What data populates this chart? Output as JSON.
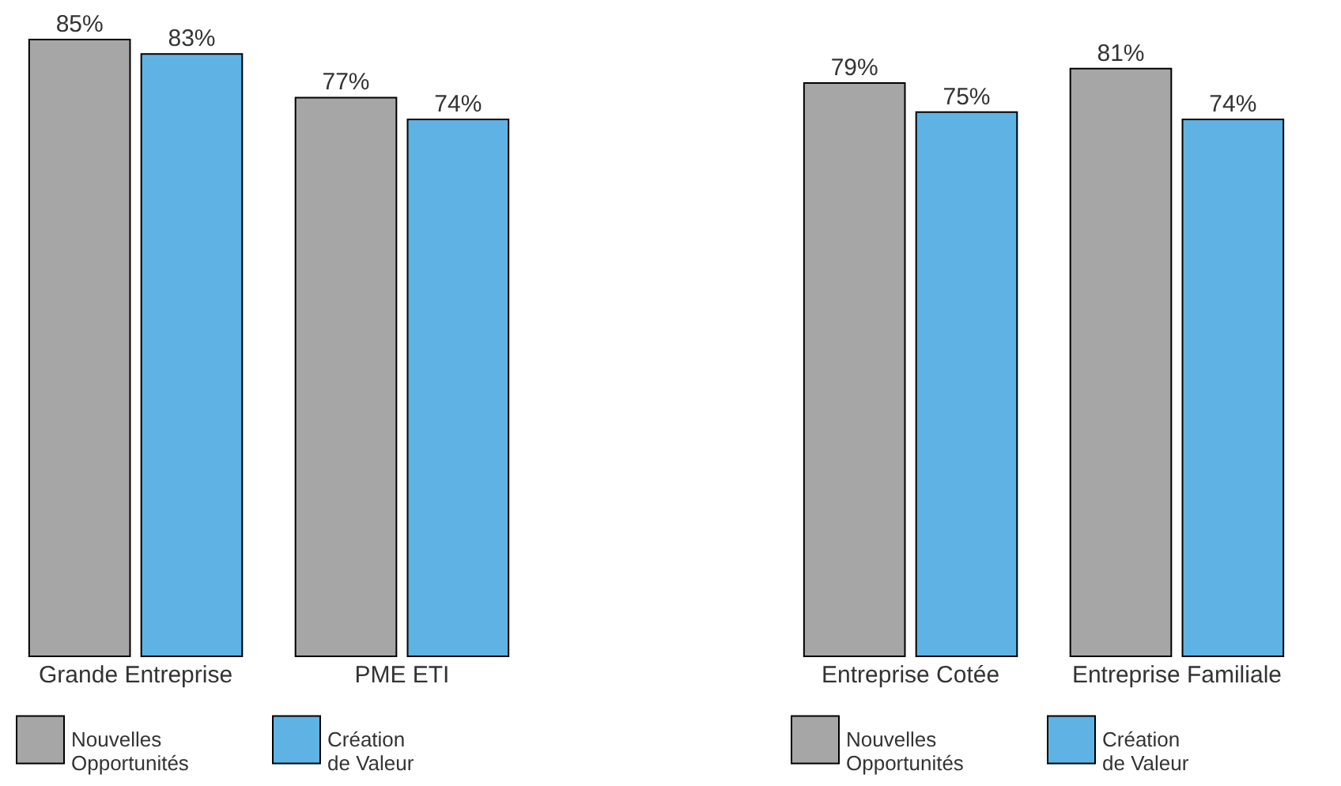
{
  "chart_data": [
    {
      "type": "bar",
      "categories": [
        "Grande Entreprise",
        "PME ETI"
      ],
      "legend": "bottom",
      "series": [
        {
          "name": "Nouvelles Opportunités",
          "color": "#a6a6a6",
          "values": [
            85,
            77
          ],
          "value_labels": [
            "85%",
            "77%"
          ]
        },
        {
          "name": "Création de Valeur",
          "color": "#5eb3e4",
          "values": [
            83,
            74
          ],
          "value_labels": [
            "83%",
            "74%"
          ]
        }
      ]
    },
    {
      "type": "bar",
      "categories": [
        "Entreprise Cotée",
        "Entreprise Familiale"
      ],
      "legend": "bottom",
      "series": [
        {
          "name": "Nouvelles Opportunités",
          "color": "#a6a6a6",
          "values": [
            79,
            81
          ],
          "value_labels": [
            "79%",
            "81%"
          ]
        },
        {
          "name": "Création de Valeur",
          "color": "#5eb3e4",
          "values": [
            75,
            74
          ],
          "value_labels": [
            "75%",
            "74%"
          ]
        }
      ]
    }
  ]
}
